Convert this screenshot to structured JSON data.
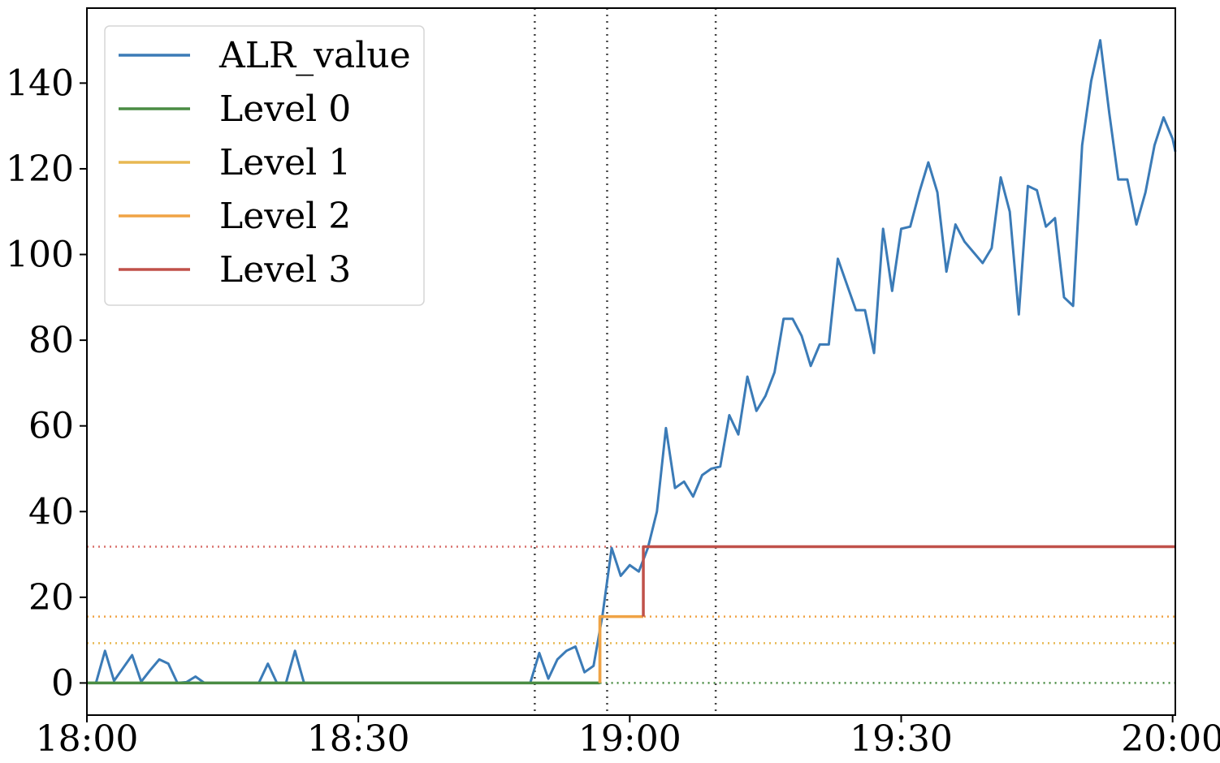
{
  "chart_data": {
    "type": "line",
    "title": "",
    "xlabel": "",
    "ylabel": "",
    "x_unit": "minutes after 18:00",
    "xlim": [
      0,
      120.3
    ],
    "ylim": [
      -7.5,
      157.5
    ],
    "x_ticks": [
      {
        "value": 0,
        "label": "18:00"
      },
      {
        "value": 30,
        "label": "18:30"
      },
      {
        "value": 60,
        "label": "19:00"
      },
      {
        "value": 90,
        "label": "19:30"
      },
      {
        "value": 120,
        "label": "20:00"
      }
    ],
    "y_ticks": [
      {
        "value": 0,
        "label": "0"
      },
      {
        "value": 20,
        "label": "20"
      },
      {
        "value": 40,
        "label": "40"
      },
      {
        "value": 60,
        "label": "60"
      },
      {
        "value": 80,
        "label": "80"
      },
      {
        "value": 100,
        "label": "100"
      },
      {
        "value": 120,
        "label": "120"
      },
      {
        "value": 140,
        "label": "140"
      }
    ],
    "grid": false,
    "legend_position": "top-left",
    "series": [
      {
        "name": "ALR_value",
        "color": "#3b7bb7",
        "points": [
          [
            0,
            0
          ],
          [
            1,
            0
          ],
          [
            2,
            7.5
          ],
          [
            3,
            0.5
          ],
          [
            4,
            3.5
          ],
          [
            5,
            6.5
          ],
          [
            6,
            0.3
          ],
          [
            7,
            3
          ],
          [
            8,
            5.5
          ],
          [
            9,
            4.5
          ],
          [
            10,
            0
          ],
          [
            11,
            0.2
          ],
          [
            12,
            1.5
          ],
          [
            13,
            0
          ],
          [
            14,
            0
          ],
          [
            15,
            0
          ],
          [
            16,
            0
          ],
          [
            17,
            0
          ],
          [
            18,
            0
          ],
          [
            19,
            0
          ],
          [
            20,
            4.5
          ],
          [
            21,
            0
          ],
          [
            22,
            0
          ],
          [
            23,
            7.5
          ],
          [
            24,
            0
          ],
          [
            25,
            0
          ],
          [
            26,
            0
          ],
          [
            27,
            0
          ],
          [
            28,
            0
          ],
          [
            29,
            0
          ],
          [
            30,
            0
          ],
          [
            31,
            0
          ],
          [
            32,
            0
          ],
          [
            33,
            0
          ],
          [
            34,
            0
          ],
          [
            35,
            0
          ],
          [
            36,
            0
          ],
          [
            37,
            0
          ],
          [
            38,
            0
          ],
          [
            39,
            0
          ],
          [
            40,
            0
          ],
          [
            41,
            0
          ],
          [
            42,
            0
          ],
          [
            43,
            0
          ],
          [
            44,
            0
          ],
          [
            45,
            0
          ],
          [
            46,
            0
          ],
          [
            47,
            0
          ],
          [
            48,
            0
          ],
          [
            49,
            0
          ],
          [
            50,
            7
          ],
          [
            51,
            1
          ],
          [
            52,
            5.5
          ],
          [
            53,
            7.5
          ],
          [
            54,
            8.5
          ],
          [
            55,
            2.5
          ],
          [
            56,
            4
          ],
          [
            57,
            16
          ],
          [
            58,
            31.5
          ],
          [
            59,
            25
          ],
          [
            60,
            27.5
          ],
          [
            61,
            26
          ],
          [
            62,
            31.5
          ],
          [
            63,
            40
          ],
          [
            64,
            59.5
          ],
          [
            65,
            45.5
          ],
          [
            66,
            47
          ],
          [
            67,
            43.5
          ],
          [
            68,
            48.5
          ],
          [
            69,
            50
          ],
          [
            70,
            50.5
          ],
          [
            71,
            62.5
          ],
          [
            72,
            58
          ],
          [
            73,
            71.5
          ],
          [
            74,
            63.5
          ],
          [
            75,
            67
          ],
          [
            76,
            72.5
          ],
          [
            77,
            85
          ],
          [
            78,
            85
          ],
          [
            79,
            81
          ],
          [
            80,
            74
          ],
          [
            81,
            79
          ],
          [
            82,
            79
          ],
          [
            83,
            99
          ],
          [
            84,
            93
          ],
          [
            85,
            87
          ],
          [
            86,
            87
          ],
          [
            87,
            77
          ],
          [
            88,
            106
          ],
          [
            89,
            91.5
          ],
          [
            90,
            106
          ],
          [
            91,
            106.5
          ],
          [
            92,
            114.5
          ],
          [
            93,
            121.5
          ],
          [
            94,
            114.5
          ],
          [
            95,
            96
          ],
          [
            96,
            107
          ],
          [
            97,
            103
          ],
          [
            98,
            100.5
          ],
          [
            99,
            98
          ],
          [
            100,
            101.5
          ],
          [
            101,
            118
          ],
          [
            102,
            110
          ],
          [
            103,
            86
          ],
          [
            104,
            116
          ],
          [
            105,
            115
          ],
          [
            106,
            106.5
          ],
          [
            107,
            108.5
          ],
          [
            108,
            90
          ],
          [
            109,
            88
          ],
          [
            110,
            125.5
          ],
          [
            111,
            140.5
          ],
          [
            112,
            150
          ],
          [
            113,
            133
          ],
          [
            114,
            117.5
          ],
          [
            115,
            117.5
          ],
          [
            116,
            107
          ],
          [
            117,
            114.5
          ],
          [
            118,
            125.5
          ],
          [
            119,
            132
          ],
          [
            120,
            127
          ],
          [
            120.3,
            124
          ]
        ]
      },
      {
        "name": "Level 0",
        "color": "#4a8c43",
        "points": [
          [
            0,
            0
          ],
          [
            56.7,
            0
          ]
        ]
      },
      {
        "name": "Level 1",
        "color": "#e8b852",
        "points": [
          [
            56.7,
            0
          ],
          [
            56.7,
            15.5
          ],
          [
            57.2,
            15.5
          ]
        ]
      },
      {
        "name": "Level 2",
        "color": "#f0a345",
        "points": [
          [
            56.7,
            0
          ],
          [
            56.7,
            15.5
          ],
          [
            61.5,
            15.5
          ]
        ]
      },
      {
        "name": "Level 3",
        "color": "#c0514a",
        "points": [
          [
            61.5,
            15.5
          ],
          [
            61.5,
            31.8
          ],
          [
            120.3,
            31.8
          ]
        ]
      }
    ],
    "threshold_lines": [
      {
        "y": 0,
        "color": "#4a8c43",
        "from_x": 56.7
      },
      {
        "y": 9.3,
        "color": "#e8b852"
      },
      {
        "y": 15.5,
        "color": "#f0a345"
      },
      {
        "y": 31.8,
        "color": "#d9706c"
      }
    ],
    "event_lines": [
      {
        "x": 49.5,
        "color": "#444444"
      },
      {
        "x": 57.5,
        "color": "#444444"
      },
      {
        "x": 69.5,
        "color": "#444444"
      }
    ]
  }
}
